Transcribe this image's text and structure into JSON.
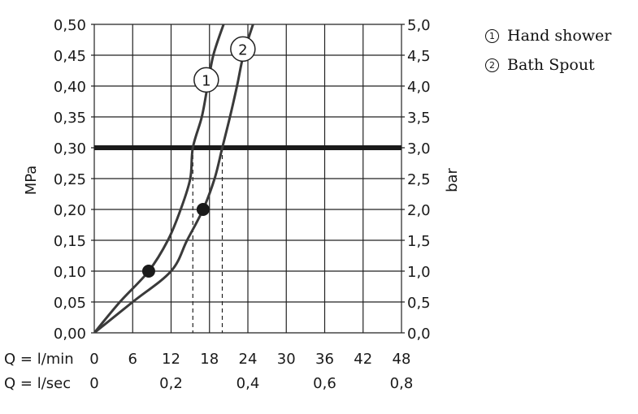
{
  "chart_data": {
    "type": "line",
    "left_axis": {
      "label": "MPa",
      "ticks": [
        "0,00",
        "0,05",
        "0,10",
        "0,15",
        "0,20",
        "0,25",
        "0,30",
        "0,35",
        "0,40",
        "0,45",
        "0,50"
      ],
      "range": [
        0,
        0.5
      ]
    },
    "right_axis": {
      "label": "bar",
      "ticks": [
        "0,0",
        "0,5",
        "1,0",
        "1,5",
        "2,0",
        "2,5",
        "3,0",
        "3,5",
        "4,0",
        "4,5",
        "5,0"
      ],
      "range": [
        0,
        5
      ]
    },
    "x_axis_lmin": {
      "prefix": "Q = l/min",
      "ticks": [
        "0",
        "6",
        "12",
        "18",
        "24",
        "30",
        "36",
        "42",
        "48"
      ],
      "range": [
        0,
        48
      ]
    },
    "x_axis_lsec": {
      "prefix": "Q = l/sec",
      "ticks": [
        "0",
        "0,2",
        "0,4",
        "0,6",
        "0,8"
      ]
    },
    "reference_line": {
      "pressure_mpa": 0.3
    },
    "series": [
      {
        "name": "Hand shower",
        "marker": "1",
        "points": [
          [
            0,
            0
          ],
          [
            4,
            0.05
          ],
          [
            8.5,
            0.1
          ],
          [
            11.5,
            0.15
          ],
          [
            13.5,
            0.2
          ],
          [
            15,
            0.25
          ],
          [
            15.4,
            0.3
          ],
          [
            16.8,
            0.35
          ],
          [
            17.7,
            0.4
          ],
          [
            18.6,
            0.45
          ],
          [
            20.2,
            0.5
          ]
        ],
        "operating_point": [
          8.5,
          0.1
        ],
        "flow_at_reference": 15.4
      },
      {
        "name": "Bath Spout",
        "marker": "2",
        "points": [
          [
            0,
            0
          ],
          [
            6,
            0.05
          ],
          [
            12,
            0.1
          ],
          [
            14.5,
            0.15
          ],
          [
            17,
            0.2
          ],
          [
            18.8,
            0.25
          ],
          [
            20,
            0.3
          ],
          [
            21.2,
            0.35
          ],
          [
            22.3,
            0.4
          ],
          [
            23.3,
            0.45
          ],
          [
            24.8,
            0.5
          ]
        ],
        "operating_point": [
          17,
          0.2
        ],
        "flow_at_reference": 20
      }
    ],
    "grid": true
  }
}
